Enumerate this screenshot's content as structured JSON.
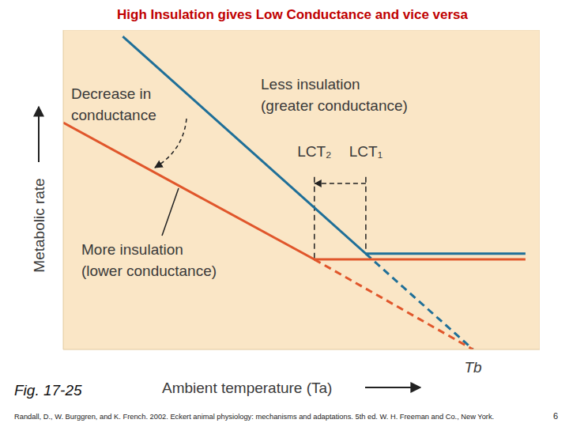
{
  "chart_data": {
    "type": "line",
    "title": "High Insulation gives Low Conductance and vice versa",
    "x_label": "Ambient temperature (Ta)",
    "y_label": "Metabolic rate",
    "xlim": [
      0,
      100
    ],
    "ylim": [
      0,
      100
    ],
    "tick_labels": false,
    "grid": false,
    "series": [
      {
        "color": "#1f6f98",
        "line_style": "solid",
        "x": [
          12.5,
          63.5,
          97
        ],
        "values": [
          98,
          30,
          30
        ]
      },
      {
        "color": "#1f6f98",
        "line_style": "dashed",
        "x": [
          63.5,
          86
        ],
        "values": [
          30,
          0
        ]
      },
      {
        "color": "#e0562b",
        "line_style": "solid",
        "x": [
          0,
          52.7,
          97
        ],
        "values": [
          71,
          28.2,
          28.2
        ]
      },
      {
        "color": "#e0562b",
        "line_style": "dashed",
        "x": [
          52.7,
          86
        ],
        "values": [
          28.2,
          0
        ]
      }
    ],
    "lct": [
      {
        "label": "LCT₂",
        "x": 52.7
      },
      {
        "label": "LCT₁",
        "x": 63.5
      }
    ],
    "convergence": {
      "label": "Tb",
      "x": 86
    },
    "annotations": {
      "decrease": "Decrease in\nconductance",
      "less": "Less insulation\n(greater conductance)",
      "more": "More insulation\n(lower conductance)"
    },
    "caption": "Fig. 17-25",
    "source": "Randall, D., W. Burggren, and K. French. 2002. Eckert animal physiology: mechanisms and adaptations. 5th ed. W. H. Freeman and Co., New York.",
    "page": 6
  }
}
